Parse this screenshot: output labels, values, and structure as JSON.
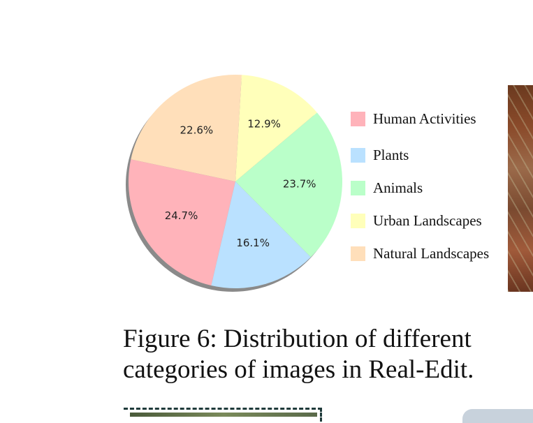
{
  "chart_data": {
    "type": "pie",
    "slices": [
      {
        "label": "Human Activities",
        "value": 24.7,
        "display": "24.7%",
        "color": "#ffb3ba"
      },
      {
        "label": "Plants",
        "value": 16.1,
        "display": "16.1%",
        "color": "#bae1ff"
      },
      {
        "label": "Animals",
        "value": 23.7,
        "display": "23.7%",
        "color": "#baffc9"
      },
      {
        "label": "Urban Landscapes",
        "value": 12.9,
        "display": "12.9%",
        "color": "#ffffba"
      },
      {
        "label": "Natural Landscapes",
        "value": 22.6,
        "display": "22.6%",
        "color": "#ffdfba"
      }
    ],
    "legend_position": "right",
    "shadow": true
  },
  "caption": {
    "line1": "Figure 6: Distribution of different",
    "line2": "categories of images in Real-Edit."
  }
}
